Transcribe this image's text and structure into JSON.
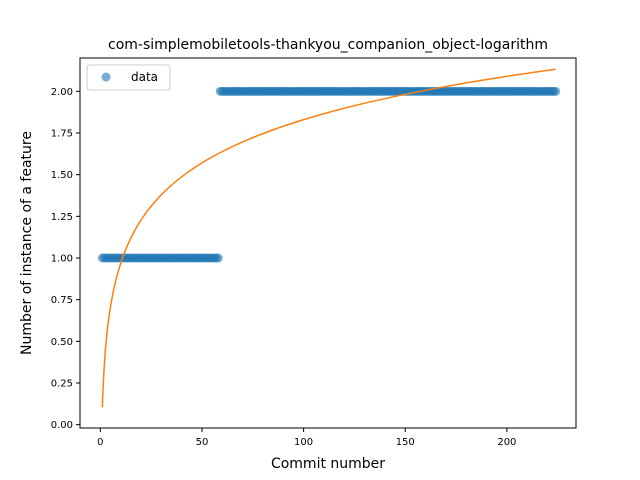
{
  "chart_data": {
    "type": "scatter",
    "title": "com-simplemobiletools-thankyou_companion_object-logarithm",
    "xlabel": "Commit number",
    "ylabel": "Number of instance of a feature",
    "xlim": [
      -10,
      234
    ],
    "ylim": [
      -0.02,
      2.2
    ],
    "xticks": [
      0,
      50,
      100,
      150,
      200
    ],
    "yticks": [
      0.0,
      0.25,
      0.5,
      0.75,
      1.0,
      1.25,
      1.5,
      1.75,
      2.0
    ],
    "ytick_labels": [
      "0.00",
      "0.25",
      "0.50",
      "0.75",
      "1.00",
      "1.25",
      "1.50",
      "1.75",
      "2.00"
    ],
    "legend": {
      "position": "top-left",
      "entries": [
        "data"
      ]
    },
    "colors": {
      "data": "#1f77b4",
      "fit": "#ff7f0e"
    },
    "series": [
      {
        "name": "data",
        "kind": "points",
        "segments": [
          {
            "x_from": 1,
            "x_to": 58,
            "y": 1
          },
          {
            "x_from": 59,
            "x_to": 224,
            "y": 2
          }
        ]
      },
      {
        "kind": "line",
        "model": "logarithmic fit",
        "x": [
          1,
          2,
          5,
          10,
          20,
          30,
          50,
          75,
          100,
          125,
          150,
          175,
          200,
          224
        ],
        "y": [
          0.09,
          0.35,
          0.72,
          0.98,
          1.24,
          1.38,
          1.58,
          1.73,
          1.83,
          1.92,
          1.98,
          2.04,
          2.08,
          2.11
        ]
      }
    ]
  }
}
